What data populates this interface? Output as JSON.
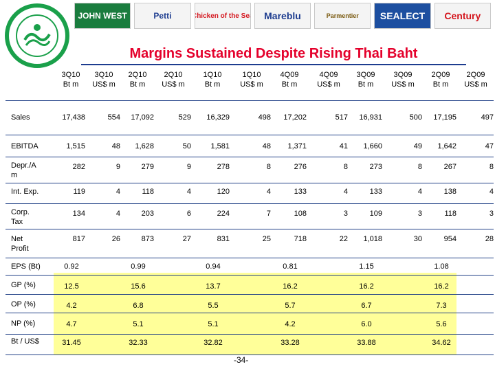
{
  "brands": [
    "JOHN WEST",
    "Petti",
    "Chicken of the Sea",
    "Mareblu",
    "Parmentier",
    "SEALECT",
    "Century"
  ],
  "title": "Margins Sustained Despite Rising Thai Baht",
  "columns": [
    [
      "3Q10",
      "Bt m"
    ],
    [
      "3Q10",
      "US$ m"
    ],
    [
      "2Q10",
      "Bt m"
    ],
    [
      "2Q10",
      "US$ m"
    ],
    [
      "1Q10",
      "Bt m"
    ],
    [
      "1Q10",
      "US$ m"
    ],
    [
      "4Q09",
      "Bt m"
    ],
    [
      "4Q09",
      "US$ m"
    ],
    [
      "3Q09",
      "Bt m"
    ],
    [
      "3Q09",
      "US$ m"
    ],
    [
      "2Q09",
      "Bt m"
    ],
    [
      "2Q09",
      "US$ m"
    ]
  ],
  "rows": [
    {
      "label": [
        "Sales"
      ],
      "values": [
        "17,438",
        "554",
        "17,092",
        "529",
        "16,329",
        "498",
        "17,202",
        "517",
        "16,931",
        "500",
        "17,195",
        "497"
      ]
    },
    {
      "label": [
        "EBITDA"
      ],
      "values": [
        "1,515",
        "48",
        "1,628",
        "50",
        "1,581",
        "48",
        "1,371",
        "41",
        "1,660",
        "49",
        "1,642",
        "47"
      ]
    },
    {
      "label": [
        "Depr./A",
        "m"
      ],
      "values": [
        "282",
        "9",
        "279",
        "9",
        "278",
        "8",
        "276",
        "8",
        "273",
        "8",
        "267",
        "8"
      ]
    },
    {
      "label": [
        "Int. Exp."
      ],
      "values": [
        "119",
        "4",
        "118",
        "4",
        "120",
        "4",
        "133",
        "4",
        "133",
        "4",
        "138",
        "4"
      ]
    },
    {
      "label": [
        "Corp.",
        "Tax"
      ],
      "values": [
        "134",
        "4",
        "203",
        "6",
        "224",
        "7",
        "108",
        "3",
        "109",
        "3",
        "118",
        "3"
      ]
    },
    {
      "label": [
        "Net",
        "Profit"
      ],
      "values": [
        "817",
        "26",
        "873",
        "27",
        "831",
        "25",
        "718",
        "22",
        "1,018",
        "30",
        "954",
        "28"
      ]
    },
    {
      "label": [
        "EPS (Bt)"
      ],
      "values": [
        "0.92",
        "",
        "0.99",
        "",
        "0.94",
        "",
        "0.81",
        "",
        "1.15",
        "",
        "1.08",
        ""
      ]
    },
    {
      "label": [
        "GP (%)"
      ],
      "values": [
        "12.5",
        "",
        "15.6",
        "",
        "13.7",
        "",
        "16.2",
        "",
        "16.2",
        "",
        "16.2",
        ""
      ]
    },
    {
      "label": [
        "OP (%)"
      ],
      "values": [
        "4.2",
        "",
        "6.8",
        "",
        "5.5",
        "",
        "5.7",
        "",
        "6.7",
        "",
        "7.3",
        ""
      ]
    },
    {
      "label": [
        "NP (%)"
      ],
      "values": [
        "4.7",
        "",
        "5.1",
        "",
        "5.1",
        "",
        "4.2",
        "",
        "6.0",
        "",
        "5.6",
        ""
      ]
    },
    {
      "label": [
        "Bt / US$"
      ],
      "values": [
        "31.45",
        "",
        "32.33",
        "",
        "32.82",
        "",
        "33.28",
        "",
        "33.88",
        "",
        "34.62",
        ""
      ]
    }
  ],
  "page_number": "-34-"
}
